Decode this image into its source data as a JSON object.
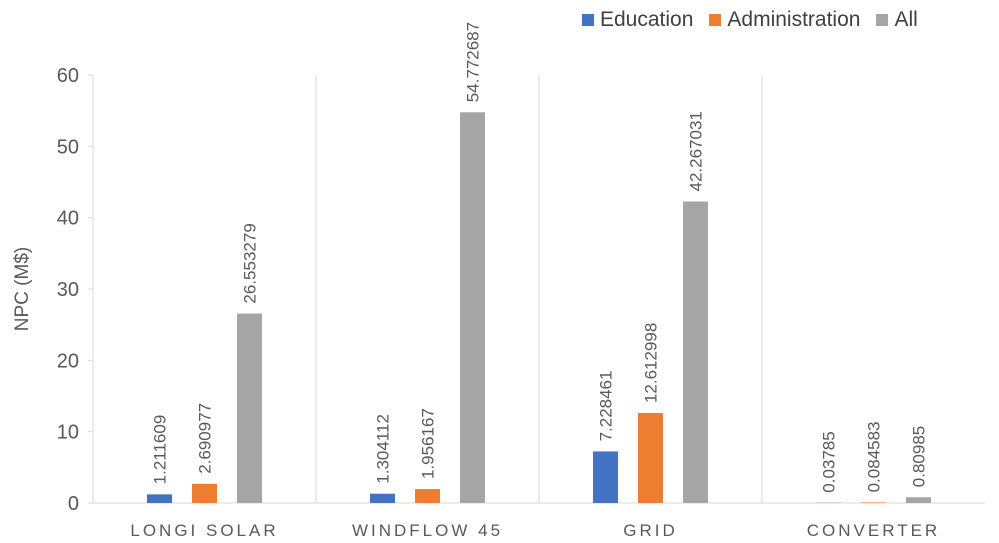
{
  "chart_data": {
    "type": "bar",
    "categories": [
      "LONGI SOLAR",
      "WINDFLOW 45",
      "GRID",
      "CONVERTER"
    ],
    "series": [
      {
        "name": "Education",
        "color": "#4472c4",
        "values": [
          1.211609,
          1.304112,
          7.228461,
          0.03785
        ],
        "labels": [
          "1.211609",
          "1.304112",
          "7.228461",
          "0.03785"
        ]
      },
      {
        "name": "Administration",
        "color": "#ed7d31",
        "values": [
          2.690977,
          1.956167,
          12.612998,
          0.084583
        ],
        "labels": [
          "2.690977",
          "1.956167",
          "12.612998",
          "0.084583"
        ]
      },
      {
        "name": "All",
        "color": "#a5a5a5",
        "values": [
          26.553279,
          54.772687,
          42.267031,
          0.80985
        ],
        "labels": [
          "26.553279",
          "54.772687",
          "42.267031",
          "0.80985"
        ]
      }
    ],
    "ylabel": "NPC (M$)",
    "xlabel": "",
    "ylim": [
      0,
      60
    ],
    "yticks": [
      "0",
      "10",
      "20",
      "30",
      "40",
      "50",
      "60"
    ],
    "grid": false,
    "category_separators": true,
    "legend_position": "top-right",
    "colors": {
      "axis": "#d9d9d9",
      "text": "#595959"
    }
  }
}
